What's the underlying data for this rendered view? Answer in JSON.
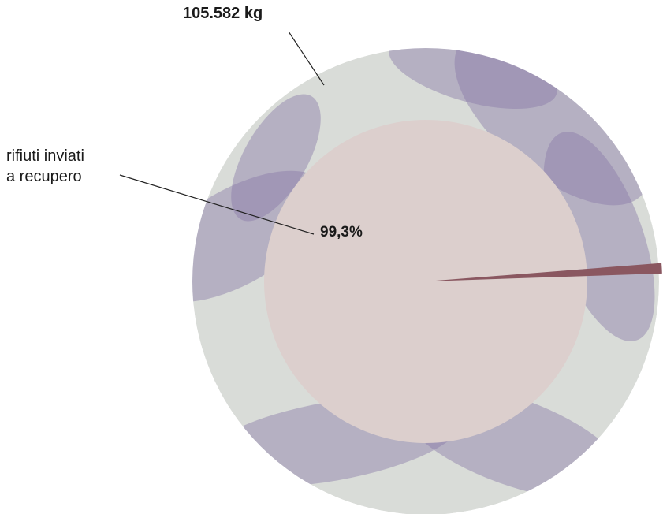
{
  "chart_data": {
    "type": "pie",
    "total_label": "105.582 kg",
    "category_label_lines": [
      "rifiuti inviati",
      "a recupero"
    ],
    "slices": [
      {
        "label": "rifiuti inviati a recupero",
        "percent": 99.3,
        "percent_text": "99,3%",
        "color": "#dccfcd"
      },
      {
        "label": "",
        "percent": 0.7,
        "percent_text": "",
        "color": "#8a5760"
      }
    ],
    "outer_ring_color": "#d9dcd8",
    "leaf_tint_color": "#8a79a8"
  }
}
